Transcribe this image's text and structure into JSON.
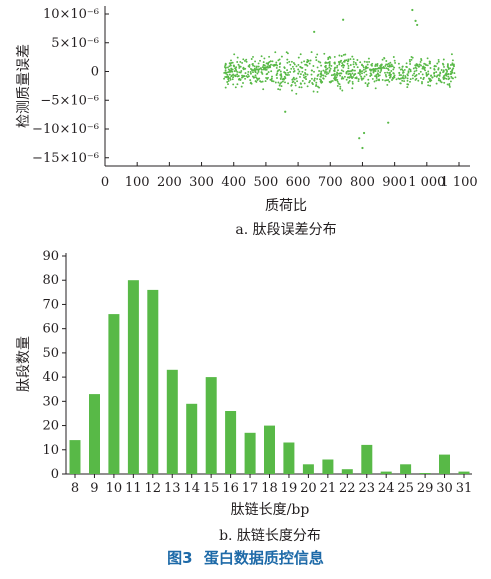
{
  "figure": {
    "label": "图3",
    "title": "蛋白数据质控信息"
  },
  "colors": {
    "accent": "#58b947",
    "title": "#1e6aa8",
    "axis": "#231f20"
  },
  "chart_data": [
    {
      "type": "scatter",
      "caption": "a. 肽段误差分布",
      "xlabel": "质荷比",
      "ylabel": "检测质量误差",
      "xlim": [
        0,
        1100
      ],
      "ylim": [
        -16,
        11
      ],
      "x_ticks": [
        0,
        100,
        200,
        300,
        400,
        500,
        600,
        700,
        800,
        900,
        1000,
        1100
      ],
      "x_tick_labels": [
        "0",
        "100",
        "200",
        "300",
        "400",
        "500",
        "600",
        "700",
        "800",
        "900",
        "1 000",
        "1 100"
      ],
      "y_ticks": [
        10,
        5,
        0,
        -5,
        -10,
        -15
      ],
      "y_tick_labels": [
        "10×10⁻⁶",
        "5×10⁻⁶",
        "0",
        "−5×10⁻⁶",
        "−10×10⁻⁶",
        "−15×10⁻⁶"
      ],
      "y_unit": "×10⁻⁶",
      "cluster": {
        "x_range": [
          370,
          1090
        ],
        "y_core": [
          -3,
          3
        ],
        "y_spread": [
          -5,
          5
        ]
      },
      "outliers": [
        {
          "x": 955,
          "y": 10.7
        },
        {
          "x": 965,
          "y": 8.8
        },
        {
          "x": 970,
          "y": 8.1
        },
        {
          "x": 740,
          "y": 9.0
        },
        {
          "x": 790,
          "y": -11.6
        },
        {
          "x": 800,
          "y": -13.3
        },
        {
          "x": 805,
          "y": -10.7
        },
        {
          "x": 880,
          "y": -8.9
        },
        {
          "x": 560,
          "y": -7.0
        },
        {
          "x": 650,
          "y": 6.9
        }
      ]
    },
    {
      "type": "bar",
      "caption": "b. 肽链长度分布",
      "xlabel": "肽链长度/bp",
      "ylabel": "肽段数量",
      "ylim": [
        0,
        90
      ],
      "y_ticks": [
        0,
        10,
        20,
        30,
        40,
        50,
        60,
        70,
        80,
        90
      ],
      "categories": [
        "8",
        "9",
        "10",
        "11",
        "12",
        "13",
        "14",
        "15",
        "16",
        "17",
        "18",
        "19",
        "20",
        "21",
        "22",
        "23",
        "24",
        "25",
        "29",
        "30",
        "31"
      ],
      "values": [
        14,
        33,
        66,
        80,
        76,
        43,
        29,
        40,
        26,
        17,
        20,
        13,
        4,
        6,
        2,
        12,
        1,
        4,
        0.4,
        8,
        1
      ]
    }
  ]
}
